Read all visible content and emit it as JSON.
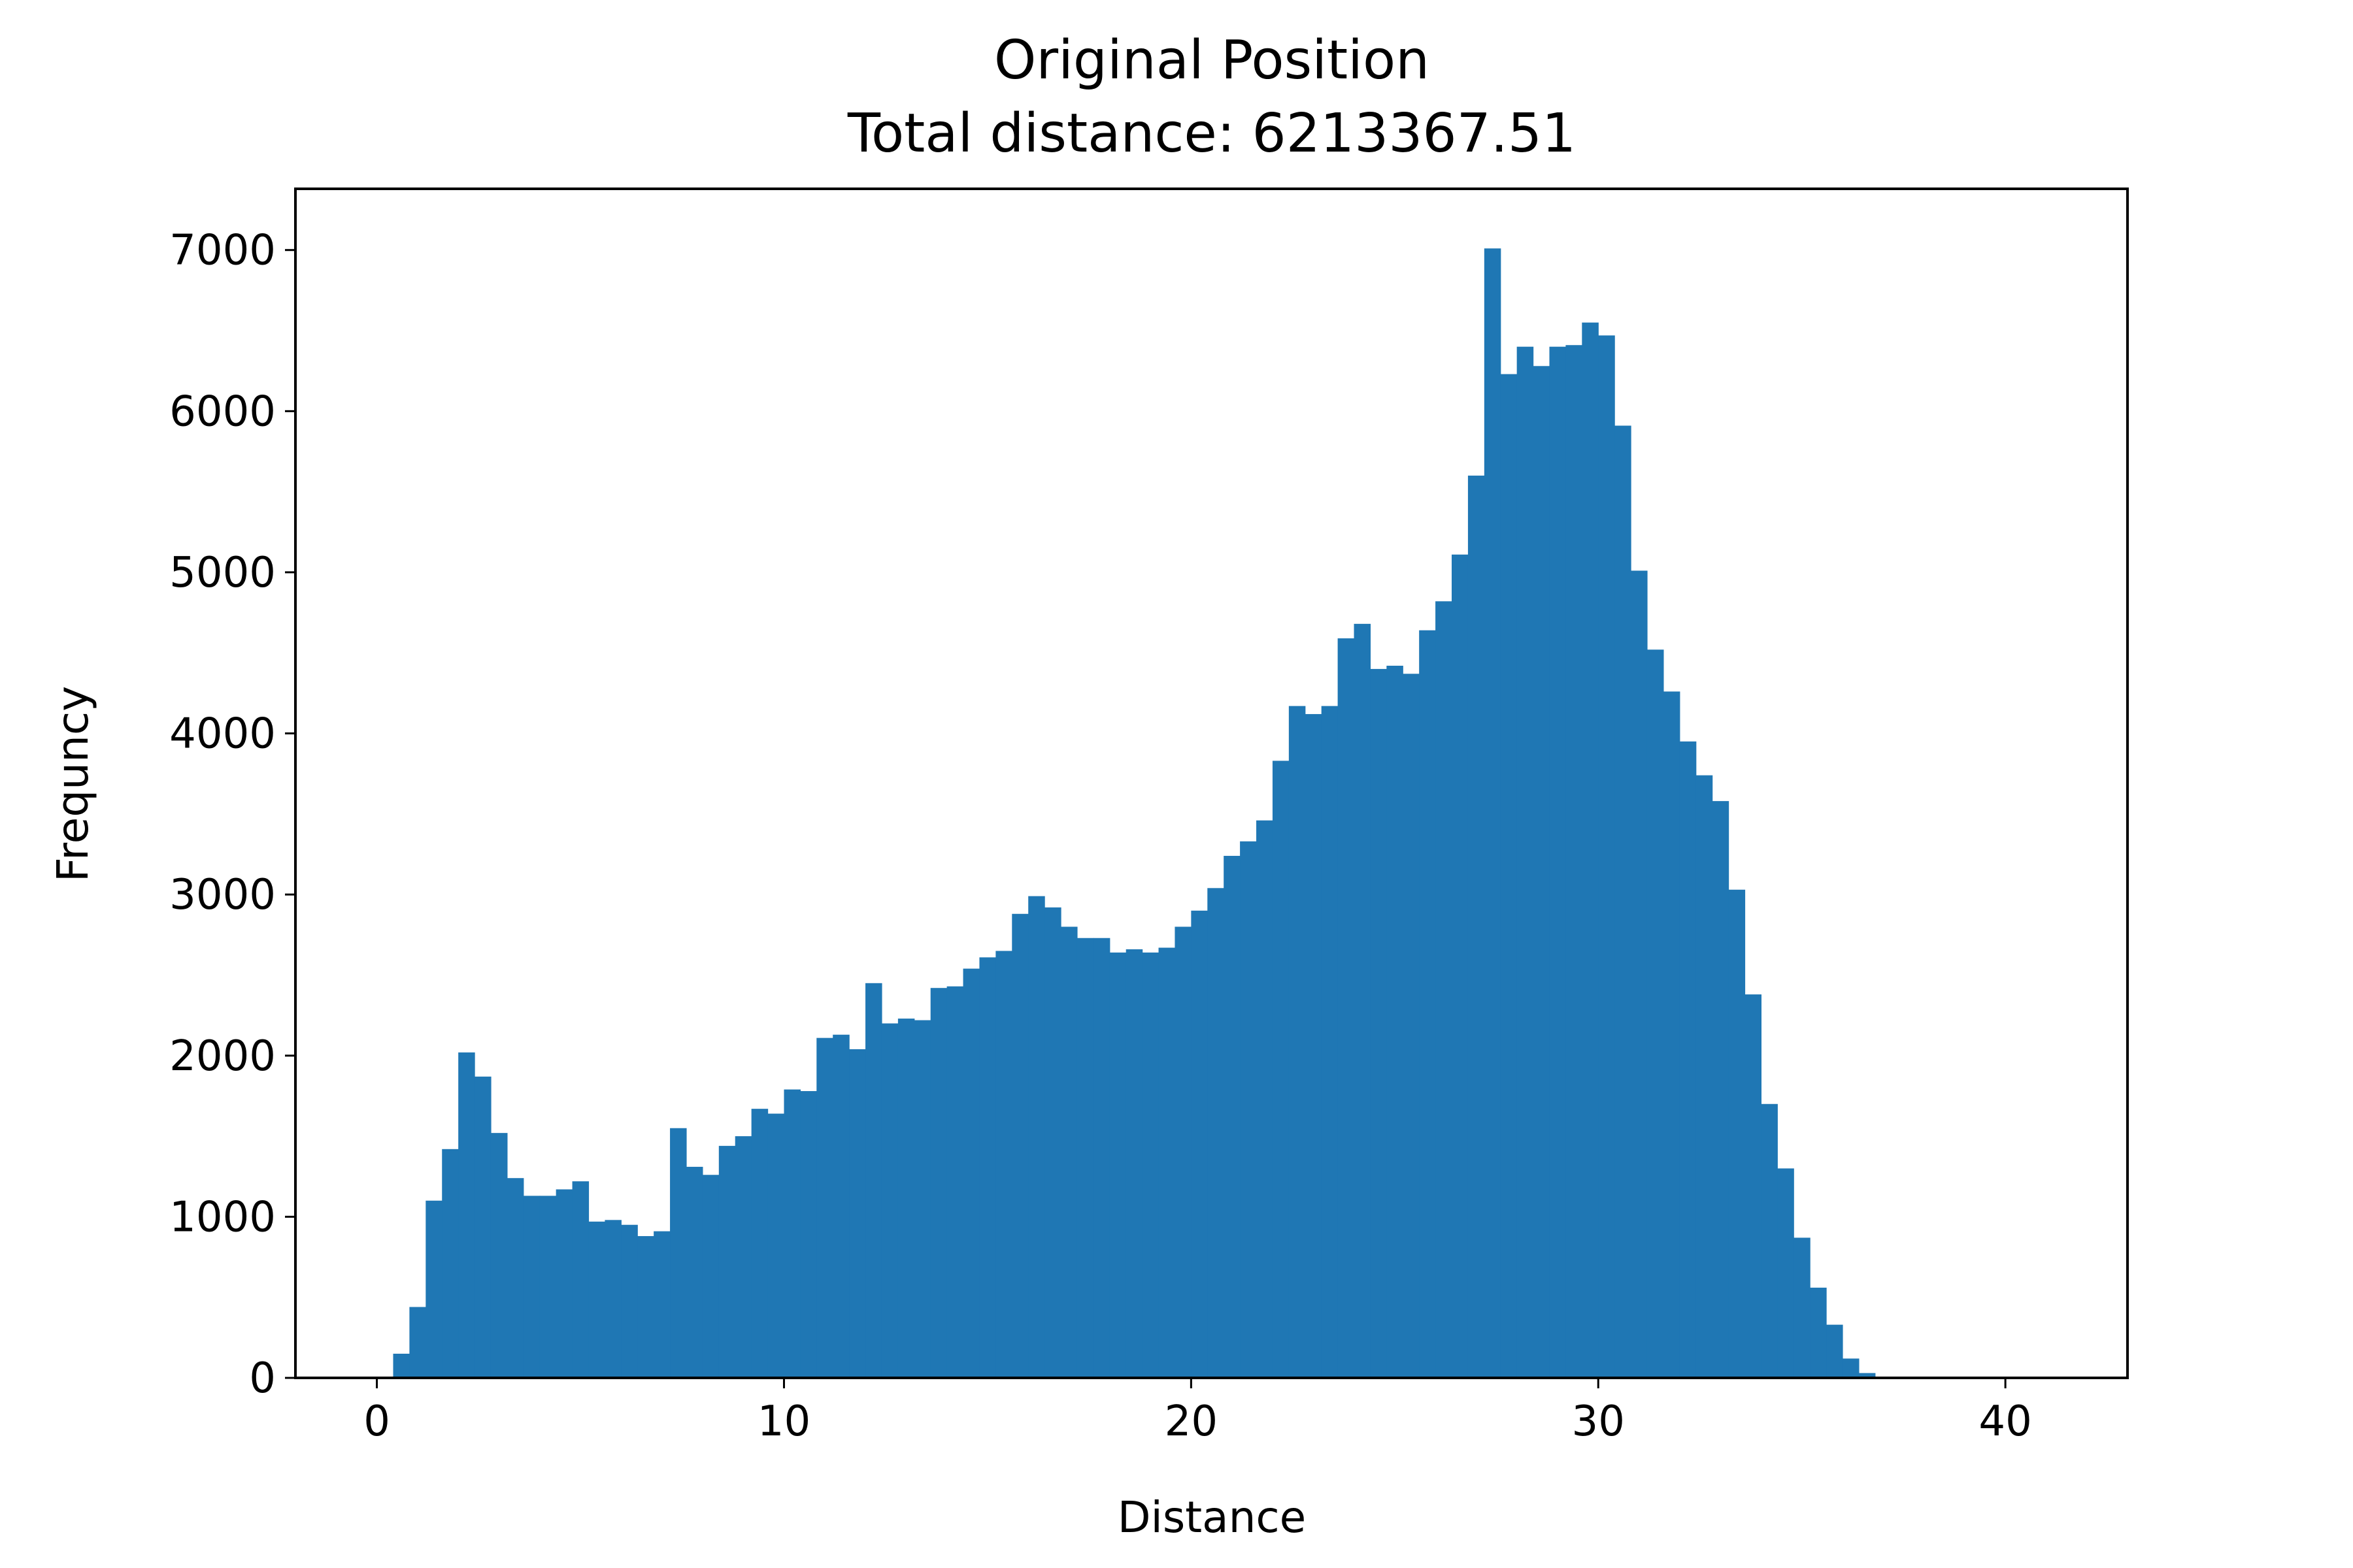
{
  "chart_data": {
    "type": "bar",
    "title": "Original Position",
    "subtitle": "Total distance: 6213367.51",
    "xlabel": "Distance",
    "ylabel": "Frequncy",
    "xlim": [
      -2,
      43
    ],
    "ylim": [
      0,
      7380
    ],
    "xticks": [
      0,
      10,
      20,
      30,
      40
    ],
    "yticks": [
      0,
      1000,
      2000,
      3000,
      4000,
      5000,
      6000,
      7000
    ],
    "grid": false,
    "bar_color": "#1f77b4",
    "bins": {
      "start": 0,
      "width": 0.4
    },
    "values": [
      0,
      150,
      440,
      1100,
      1420,
      2020,
      1870,
      1520,
      1240,
      1130,
      1130,
      1170,
      1220,
      970,
      980,
      950,
      880,
      910,
      1550,
      1310,
      1260,
      1440,
      1500,
      1670,
      1640,
      1790,
      1780,
      2110,
      2130,
      2040,
      2450,
      2200,
      2230,
      2220,
      2420,
      2430,
      2540,
      2610,
      2650,
      2880,
      2990,
      2920,
      2800,
      2730,
      2730,
      2640,
      2660,
      2640,
      2670,
      2800,
      2900,
      3040,
      3240,
      3330,
      3460,
      3830,
      4170,
      4120,
      4170,
      4590,
      4680,
      4400,
      4420,
      4370,
      4640,
      4820,
      5110,
      5600,
      7010,
      6230,
      6400,
      6280,
      6400,
      6410,
      6550,
      6470,
      5910,
      5010,
      4520,
      4260,
      3950,
      3740,
      3580,
      3030,
      2380,
      1700,
      1300,
      870,
      560,
      330,
      120,
      30,
      0
    ]
  }
}
